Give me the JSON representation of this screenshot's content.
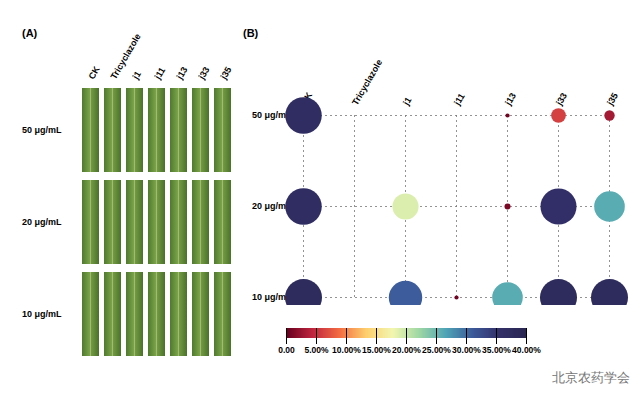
{
  "image_panel": {
    "label": "(A)",
    "columns": [
      "CK",
      "Tricyclazole",
      "j1",
      "j11",
      "j13",
      "j33",
      "j35"
    ],
    "rows": [
      "50 μg/mL",
      "20 μg/mL",
      "10 μg/mL"
    ]
  },
  "chart_data": {
    "type": "bubble",
    "label": "(B)",
    "x": [
      "CK",
      "Tricyclazole",
      "j1",
      "j11",
      "j13",
      "j33",
      "j35"
    ],
    "y": [
      "50 μg/mL",
      "20 μg/mL",
      "10 μg/mL"
    ],
    "cells": [
      [
        37,
        0,
        0,
        0,
        0.5,
        6,
        3
      ],
      [
        37,
        0,
        19,
        0,
        1,
        36,
        26
      ],
      [
        38,
        0,
        31,
        0.5,
        26,
        38,
        38
      ]
    ],
    "grid": true,
    "color_range": [
      0,
      40
    ],
    "color_ticks": [
      {
        "value": 0,
        "label": "0.00"
      },
      {
        "value": 5,
        "label": "5.00%"
      },
      {
        "value": 10,
        "label": "10.00%"
      },
      {
        "value": 15,
        "label": "15.00%"
      },
      {
        "value": 20,
        "label": "20.00%"
      },
      {
        "value": 25,
        "label": "25.00%"
      },
      {
        "value": 30,
        "label": "30.00%"
      },
      {
        "value": 35,
        "label": "35.00%"
      },
      {
        "value": 40,
        "label": "40.00%"
      }
    ]
  },
  "watermark": "北京农药学会"
}
